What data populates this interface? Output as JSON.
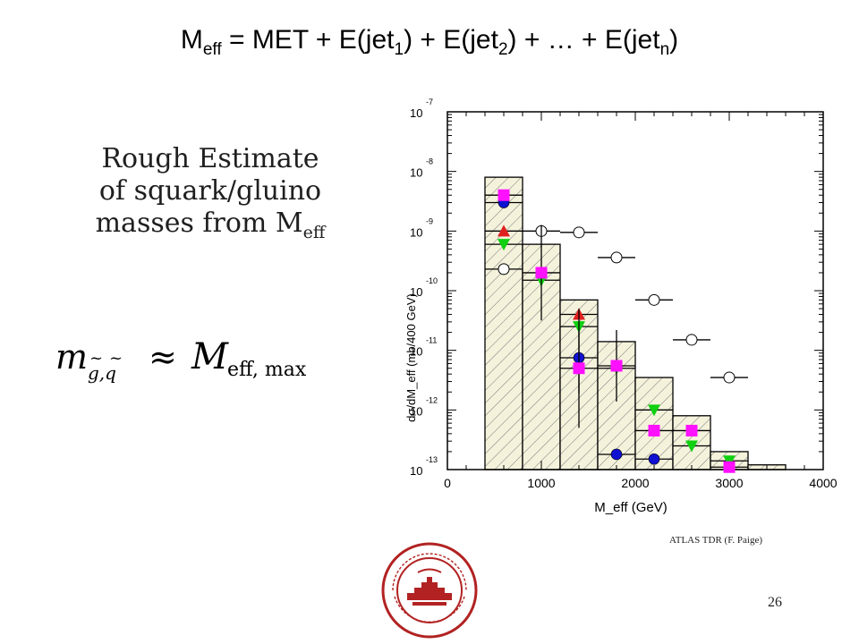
{
  "slide": {
    "title_main": "M",
    "title_sub_eff": "eff",
    "title_part1": " = MET + E(jet",
    "title_sub1": "1",
    "title_part2": ") + E(jet",
    "title_sub2": "2",
    "title_part3": ") + … + E(jet",
    "title_subn": "n",
    "title_part4": ")",
    "left_line1": "Rough Estimate",
    "left_line2": "of squark/gluino",
    "left_line3": "masses from M",
    "left_line3_sub": "eff",
    "credit": "ATLAS TDR (F. Paige)",
    "slide_number": "26",
    "seal_text": "UNIVERSITAS BOSTONIENSIS · CONDITA MDCCCLXXXIX"
  },
  "chart_data": {
    "type": "scatter",
    "xlabel": "M_eff (GeV)",
    "ylabel": "dσ/dM_eff (mb/400 GeV)",
    "xlim": [
      0,
      4000
    ],
    "ylim": [
      1e-13,
      1e-07
    ],
    "yscale": "log",
    "x_ticks": [
      "0",
      "1000",
      "2000",
      "3000",
      "4000"
    ],
    "y_ticks": [
      {
        "base": "10",
        "exp": "-13",
        "value": 1e-13
      },
      {
        "base": "10",
        "exp": "-12",
        "value": 1e-12
      },
      {
        "base": "10",
        "exp": "-11",
        "value": 1e-11
      },
      {
        "base": "10",
        "exp": "-10",
        "value": 1e-10
      },
      {
        "base": "10",
        "exp": "-9",
        "value": 1e-09
      },
      {
        "base": "10",
        "exp": "-8",
        "value": 1e-08
      },
      {
        "base": "10",
        "exp": "-7",
        "value": 1e-07
      }
    ],
    "histogram": {
      "name": "",
      "bins": [
        {
          "x0": 400,
          "x1": 800,
          "y": 8e-09
        },
        {
          "x0": 800,
          "x1": 1200,
          "y": 6e-10
        },
        {
          "x0": 1200,
          "x1": 1600,
          "y": 7e-11
        },
        {
          "x0": 1600,
          "x1": 2000,
          "y": 1.4e-11
        },
        {
          "x0": 2000,
          "x1": 2400,
          "y": 3.5e-12
        },
        {
          "x0": 2400,
          "x1": 2800,
          "y": 8e-13
        },
        {
          "x0": 2800,
          "x1": 3200,
          "y": 2e-13
        },
        {
          "x0": 3200,
          "x1": 3600,
          "y": 1.2e-13
        }
      ],
      "fill": "#f5f2dc",
      "hatch": "#777777"
    },
    "series": [
      {
        "marker": "circle-open",
        "color": "#ffffff",
        "points": [
          {
            "x": 600,
            "y": 2.3e-10,
            "err": 0
          },
          {
            "x": 1000,
            "y": 1e-09,
            "err": 0
          },
          {
            "x": 1400,
            "y": 9.5e-10,
            "err": 0
          },
          {
            "x": 1800,
            "y": 3.6e-10,
            "err": 0
          },
          {
            "x": 2200,
            "y": 7e-11,
            "err": 0
          },
          {
            "x": 2600,
            "y": 1.5e-11,
            "err": 0
          },
          {
            "x": 3000,
            "y": 3.5e-12,
            "err": 0
          }
        ]
      },
      {
        "marker": "circle",
        "color": "#1010d0",
        "points": [
          {
            "x": 600,
            "y": 3e-09,
            "err": 0
          },
          {
            "x": 1400,
            "y": 7.5e-12,
            "err": 0.6
          },
          {
            "x": 1800,
            "y": 1.8e-13,
            "err": 0
          },
          {
            "x": 2200,
            "y": 1.5e-13,
            "err": 0
          }
        ]
      },
      {
        "marker": "triangle-up",
        "color": "#e02020",
        "points": [
          {
            "x": 600,
            "y": 1e-09,
            "err": 0
          },
          {
            "x": 1400,
            "y": 4e-11,
            "err": 0
          }
        ]
      },
      {
        "marker": "triangle-down",
        "color": "#10d010",
        "points": [
          {
            "x": 600,
            "y": 6e-10,
            "err": 0
          },
          {
            "x": 1000,
            "y": 1.5e-10,
            "err": 0
          },
          {
            "x": 1400,
            "y": 2.5e-11,
            "err": 0
          },
          {
            "x": 1800,
            "y": 5e-12,
            "err": 0
          },
          {
            "x": 2200,
            "y": 1e-12,
            "err": 0
          },
          {
            "x": 2600,
            "y": 2.5e-13,
            "err": 0
          },
          {
            "x": 3000,
            "y": 1.4e-13,
            "err": 0
          }
        ]
      },
      {
        "marker": "square",
        "color": "#ff10ff",
        "points": [
          {
            "x": 600,
            "y": 4e-09,
            "err": 0
          },
          {
            "x": 1000,
            "y": 2e-10,
            "err": 0.8
          },
          {
            "x": 1400,
            "y": 5e-12,
            "err": 1.0
          },
          {
            "x": 1800,
            "y": 5.5e-12,
            "err": 0.6
          },
          {
            "x": 2200,
            "y": 4.5e-13,
            "err": 0
          },
          {
            "x": 2600,
            "y": 4.5e-13,
            "err": 0
          },
          {
            "x": 3000,
            "y": 1.1e-13,
            "err": 0
          }
        ]
      }
    ]
  }
}
